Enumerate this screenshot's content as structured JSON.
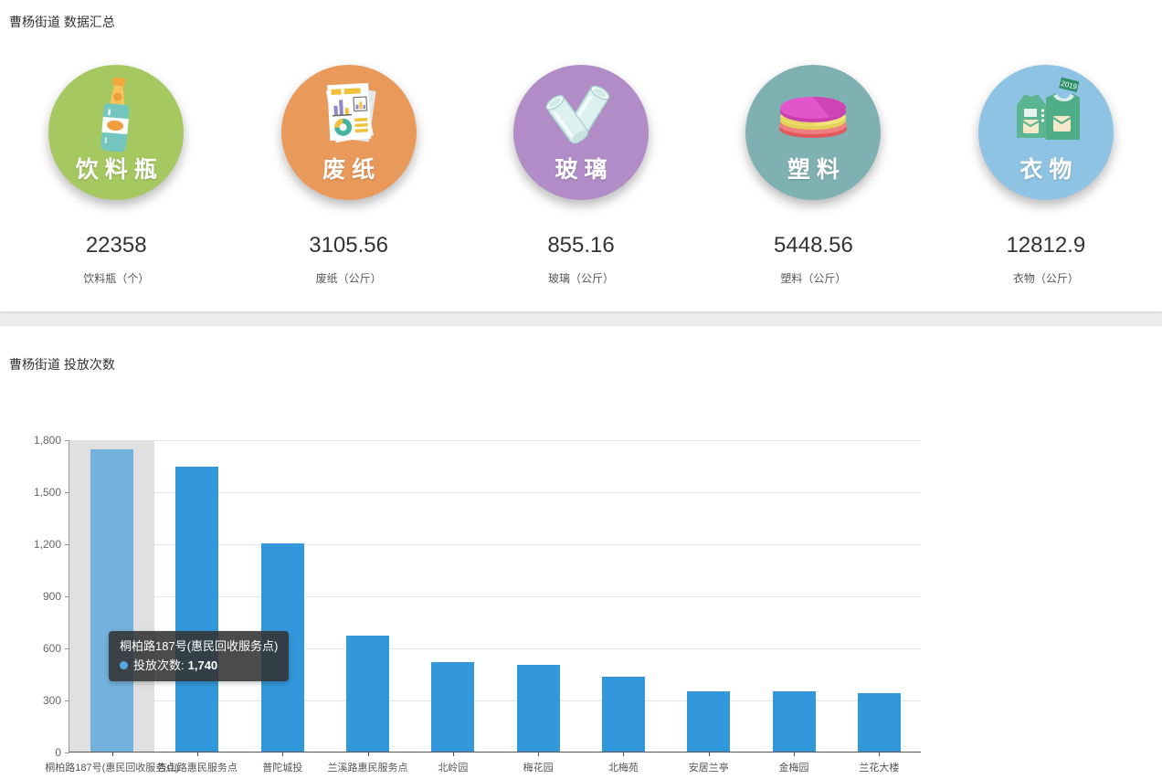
{
  "summary": {
    "title": "曹杨街道 数据汇总",
    "items": [
      {
        "key": "beverage-bottle",
        "circle_label": "饮料瓶",
        "value": "22358",
        "unit_label": "饮料瓶（个）",
        "circle_color": "#a6c860"
      },
      {
        "key": "waste-paper",
        "circle_label": "废纸",
        "value": "3105.56",
        "unit_label": "废纸（公斤）",
        "circle_color": "#e9995a"
      },
      {
        "key": "glass",
        "circle_label": "玻璃",
        "value": "855.16",
        "unit_label": "玻璃（公斤）",
        "circle_color": "#b18cc6"
      },
      {
        "key": "plastic",
        "circle_label": "塑料",
        "value": "5448.56",
        "unit_label": "塑料（公斤）",
        "circle_color": "#7fb0b2"
      },
      {
        "key": "clothes",
        "circle_label": "衣物",
        "value": "12812.9",
        "unit_label": "衣物（公斤）",
        "circle_color": "#8fc3e3",
        "tag_text": "2019"
      }
    ]
  },
  "chart": {
    "title": "曹杨街道 投放次数",
    "tooltip": {
      "title": "桐柏路187号(惠民回收服务点)",
      "series_label": "投放次数:",
      "value": "1,740"
    }
  },
  "chart_data": {
    "type": "bar",
    "title": "曹杨街道 投放次数",
    "categories": [
      "桐柏路187号(惠民回收服务点)",
      "杏山路惠民服务点",
      "普陀城投",
      "兰溪路惠民服务点",
      "北岭园",
      "梅花园",
      "北梅苑",
      "安居兰亭",
      "金梅园",
      "兰花大楼"
    ],
    "series": [
      {
        "name": "投放次数",
        "values": [
          1740,
          1640,
          1200,
          670,
          515,
          500,
          430,
          350,
          345,
          335
        ]
      }
    ],
    "xlabel": "",
    "ylabel": "",
    "ylim": [
      0,
      1800
    ],
    "yticks": [
      0,
      300,
      600,
      900,
      1200,
      1500,
      1800
    ],
    "grid": true,
    "legend_position": "none",
    "bar_color": "#3398db",
    "highlight_index": 0,
    "highlight_bar_color": "#74b2de",
    "highlight_band_color": "#e0e0e0",
    "tooltip_value": 1740
  }
}
